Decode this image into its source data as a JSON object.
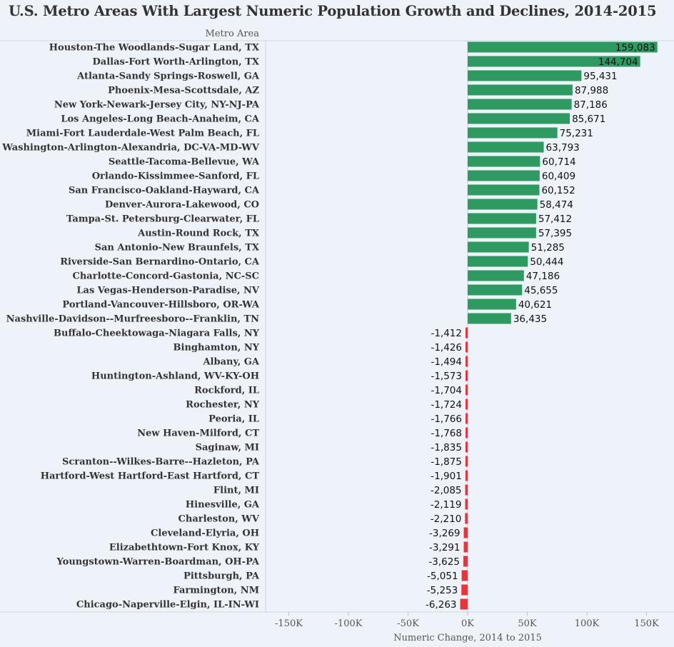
{
  "chart_data": {
    "type": "bar",
    "orientation": "horizontal",
    "title": "U.S. Metro Areas With Largest Numeric Population Growth and Declines, 2014-2015",
    "row_header": "Metro Area",
    "xlabel": "Numeric Change, 2014 to 2015",
    "xlim": [
      -175000,
      175000
    ],
    "xticks": [
      -150000,
      -100000,
      -50000,
      0,
      50000,
      100000,
      150000
    ],
    "xtick_labels": [
      "-150K",
      "-100K",
      "-50K",
      "0K",
      "50K",
      "100K",
      "150K"
    ],
    "colors": {
      "positive": "#2e9a62",
      "negative": "#e8343a",
      "background": "#eef3f9"
    },
    "categories": [
      "Houston-The Woodlands-Sugar Land, TX",
      "Dallas-Fort Worth-Arlington, TX",
      "Atlanta-Sandy Springs-Roswell, GA",
      "Phoenix-Mesa-Scottsdale, AZ",
      "New York-Newark-Jersey City, NY-NJ-PA",
      "Los Angeles-Long Beach-Anaheim, CA",
      "Miami-Fort Lauderdale-West Palm Beach, FL",
      "Washington-Arlington-Alexandria, DC-VA-MD-WV",
      "Seattle-Tacoma-Bellevue, WA",
      "Orlando-Kissimmee-Sanford, FL",
      "San Francisco-Oakland-Hayward, CA",
      "Denver-Aurora-Lakewood, CO",
      "Tampa-St. Petersburg-Clearwater, FL",
      "Austin-Round Rock, TX",
      "San Antonio-New Braunfels, TX",
      "Riverside-San Bernardino-Ontario, CA",
      "Charlotte-Concord-Gastonia, NC-SC",
      "Las Vegas-Henderson-Paradise, NV",
      "Portland-Vancouver-Hillsboro, OR-WA",
      "Nashville-Davidson--Murfreesboro--Franklin, TN",
      "Buffalo-Cheektowaga-Niagara Falls, NY",
      "Binghamton, NY",
      "Albany, GA",
      "Huntington-Ashland, WV-KY-OH",
      "Rockford, IL",
      "Rochester, NY",
      "Peoria, IL",
      "New Haven-Milford, CT",
      "Saginaw, MI",
      "Scranton--Wilkes-Barre--Hazleton, PA",
      "Hartford-West Hartford-East Hartford, CT",
      "Flint, MI",
      "Hinesville, GA",
      "Charleston, WV",
      "Cleveland-Elyria, OH",
      "Elizabethtown-Fort Knox, KY",
      "Youngstown-Warren-Boardman, OH-PA",
      "Pittsburgh, PA",
      "Farmington, NM",
      "Chicago-Naperville-Elgin, IL-IN-WI"
    ],
    "values": [
      159083,
      144704,
      95431,
      87988,
      87186,
      85671,
      75231,
      63793,
      60714,
      60409,
      60152,
      58474,
      57412,
      57395,
      51285,
      50444,
      47186,
      45655,
      40621,
      36435,
      -1412,
      -1426,
      -1494,
      -1573,
      -1704,
      -1724,
      -1766,
      -1768,
      -1835,
      -1875,
      -1901,
      -2085,
      -2119,
      -2210,
      -3269,
      -3291,
      -3625,
      -5051,
      -5253,
      -6263
    ],
    "value_labels": [
      "159,083",
      "144,704",
      "95,431",
      "87,988",
      "87,186",
      "85,671",
      "75,231",
      "63,793",
      "60,714",
      "60,409",
      "60,152",
      "58,474",
      "57,412",
      "57,395",
      "51,285",
      "50,444",
      "47,186",
      "45,655",
      "40,621",
      "36,435",
      "-1,412",
      "-1,426",
      "-1,494",
      "-1,573",
      "-1,704",
      "-1,724",
      "-1,766",
      "-1,768",
      "-1,835",
      "-1,875",
      "-1,901",
      "-2,085",
      "-2,119",
      "-2,210",
      "-3,269",
      "-3,291",
      "-3,625",
      "-5,051",
      "-5,253",
      "-6,263"
    ]
  }
}
